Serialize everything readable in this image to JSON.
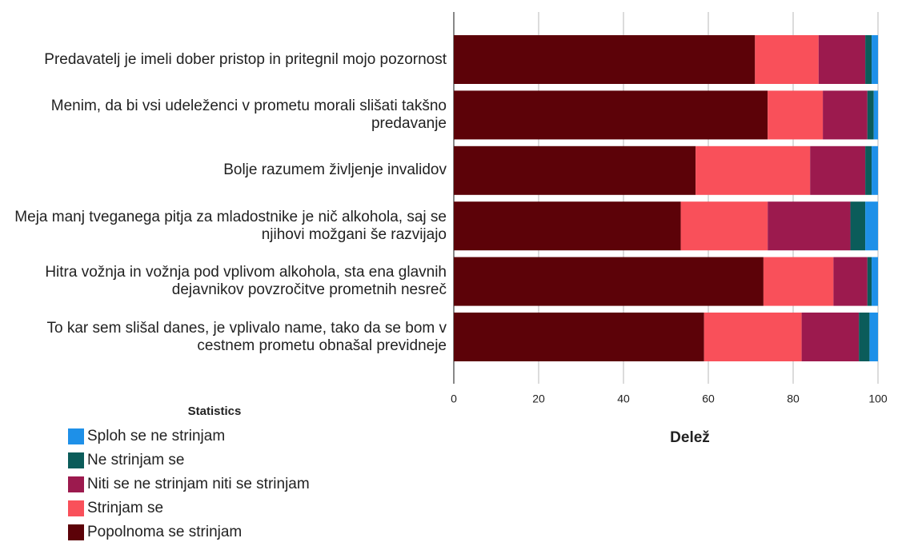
{
  "chart_data": {
    "type": "stacked_barh",
    "categories": [
      "Predavatelj je imeli dober pristop in pritegnil mojo pozornost",
      "Menim, da bi vsi udeleženci v prometu morali slišati takšno predavanje",
      "Bolje razumem življenje invalidov",
      "Meja manj tveganega pitja za mladostnike je nič alkohola, saj se njihovi možgani še razvijajo",
      "Hitra vožnja in vožnja pod vplivom alkohola, sta ena glavnih dejavnikov povzročitve prometnih nesreč",
      "To kar sem slišal danes, je vplivalo name, tako da se bom v cestnem prometu obnašal previdneje"
    ],
    "series": [
      {
        "name": "Popolnoma se strinjam",
        "color": "#5c0208",
        "values": [
          71,
          74,
          57,
          53.5,
          73,
          59
        ]
      },
      {
        "name": "Strinjam se",
        "color": "#f9505a",
        "values": [
          15,
          13,
          27,
          20.5,
          16.5,
          23
        ]
      },
      {
        "name": "Niti se ne strinjam niti se strinjam",
        "color": "#9c1a4e",
        "values": [
          11,
          10.5,
          13,
          19.5,
          8,
          13.5
        ]
      },
      {
        "name": "Ne strinjam se",
        "color": "#0b5c5a",
        "values": [
          1.5,
          1.5,
          1.5,
          3.5,
          1,
          2.5
        ]
      },
      {
        "name": "Sploh se ne strinjam",
        "color": "#1e90e8",
        "values": [
          1.5,
          1,
          1.5,
          3,
          1.5,
          2
        ]
      }
    ],
    "xlabel": "Delež",
    "legend_title": "Statistics",
    "xlim": [
      0,
      100
    ],
    "xticks": [
      0,
      20,
      40,
      60,
      80,
      100
    ],
    "grid": true
  }
}
